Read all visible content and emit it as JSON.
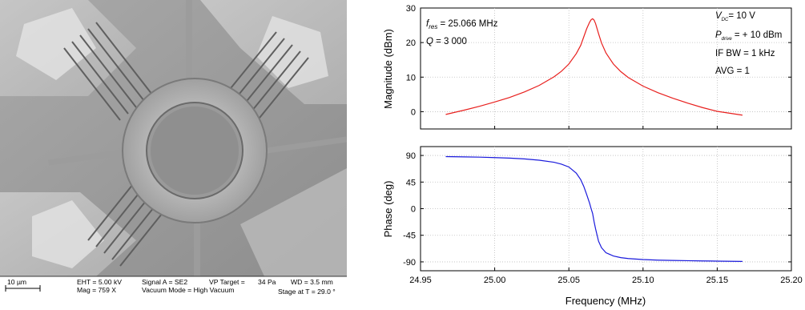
{
  "sem": {
    "scale_bar": "10 µm",
    "eht": "EHT = 5.00 kV",
    "mag": "Mag = 759 X",
    "signal": "Signal A = SE2",
    "vacuum_mode": "Vacuum Mode = High Vacuum",
    "vp_target_label": "VP Target =",
    "vp_target_value": "34 Pa",
    "wd": "WD = 3.5 mm",
    "stage": "Stage at T = 29.0 °"
  },
  "colors": {
    "magnitude_line": "#e8201e",
    "phase_line": "#1a1adc",
    "grid": "#bdbdbd"
  },
  "chart_data": [
    {
      "type": "line",
      "name": "magnitude",
      "xlim": [
        24.95,
        25.2
      ],
      "ylim": [
        -5,
        30
      ],
      "yticks": [
        0,
        10,
        20,
        30
      ],
      "ylabel": "Magnitude (dBm)",
      "grid": true,
      "series": [
        {
          "x": [
            24.967,
            24.98,
            24.99,
            25.0,
            25.01,
            25.02,
            25.03,
            25.04,
            25.045,
            25.05,
            25.055,
            25.058,
            25.06,
            25.062,
            25.064,
            25.065,
            25.066,
            25.067,
            25.068,
            25.07,
            25.072,
            25.075,
            25.08,
            25.085,
            25.09,
            25.1,
            25.11,
            25.12,
            25.13,
            25.14,
            25.15,
            25.167
          ],
          "y": [
            -0.8,
            0.5,
            1.6,
            2.8,
            4.1,
            5.7,
            7.6,
            10.1,
            11.7,
            13.8,
            16.8,
            19.2,
            21.6,
            24.0,
            25.9,
            26.6,
            26.9,
            26.5,
            25.5,
            22.6,
            19.9,
            17.0,
            13.8,
            11.6,
            9.9,
            7.4,
            5.5,
            3.9,
            2.5,
            1.2,
            0.1,
            -1.0
          ]
        }
      ],
      "annotations": {
        "fres_symbol": "f",
        "fres_sub": "res",
        "fres_value": " = 25.066 MHz",
        "q_symbol": "Q",
        "q_value": " = 3 000",
        "vdc_symbol": "V",
        "vdc_sub": "DC",
        "vdc_value": "= 10 V",
        "pdrive_symbol": "P",
        "pdrive_sub": "drive",
        "pdrive_value": " = + 10 dBm",
        "ifbw": "IF BW = 1 kHz",
        "avg": "AVG = 1"
      }
    },
    {
      "type": "line",
      "name": "phase",
      "xlim": [
        24.95,
        25.2
      ],
      "ylim": [
        -105,
        105
      ],
      "yticks": [
        90,
        45,
        0,
        -45,
        -90
      ],
      "ylabel": "Phase (deg)",
      "xlabel": "Frequency (MHz)",
      "xticks": [
        "24.95",
        "25.00",
        "25.05",
        "25.10",
        "25.15",
        "25.20"
      ],
      "grid": true,
      "series": [
        {
          "x": [
            24.967,
            24.98,
            24.99,
            25.0,
            25.01,
            25.02,
            25.03,
            25.04,
            25.045,
            25.05,
            25.055,
            25.058,
            25.06,
            25.062,
            25.064,
            25.065,
            25.066,
            25.067,
            25.068,
            25.07,
            25.072,
            25.075,
            25.08,
            25.085,
            25.09,
            25.1,
            25.11,
            25.12,
            25.13,
            25.14,
            25.15,
            25.167
          ],
          "y": [
            88.1,
            87.6,
            87.1,
            86.4,
            85.5,
            84.2,
            82.0,
            78.5,
            75.3,
            70.5,
            60.0,
            49.0,
            38.0,
            24.0,
            9.0,
            0.0,
            -8.0,
            -22.0,
            -34.0,
            -55.0,
            -66.0,
            -74.5,
            -80.0,
            -82.8,
            -84.3,
            -86.0,
            -87.0,
            -87.6,
            -88.0,
            -88.4,
            -88.7,
            -89.3
          ]
        }
      ]
    }
  ]
}
